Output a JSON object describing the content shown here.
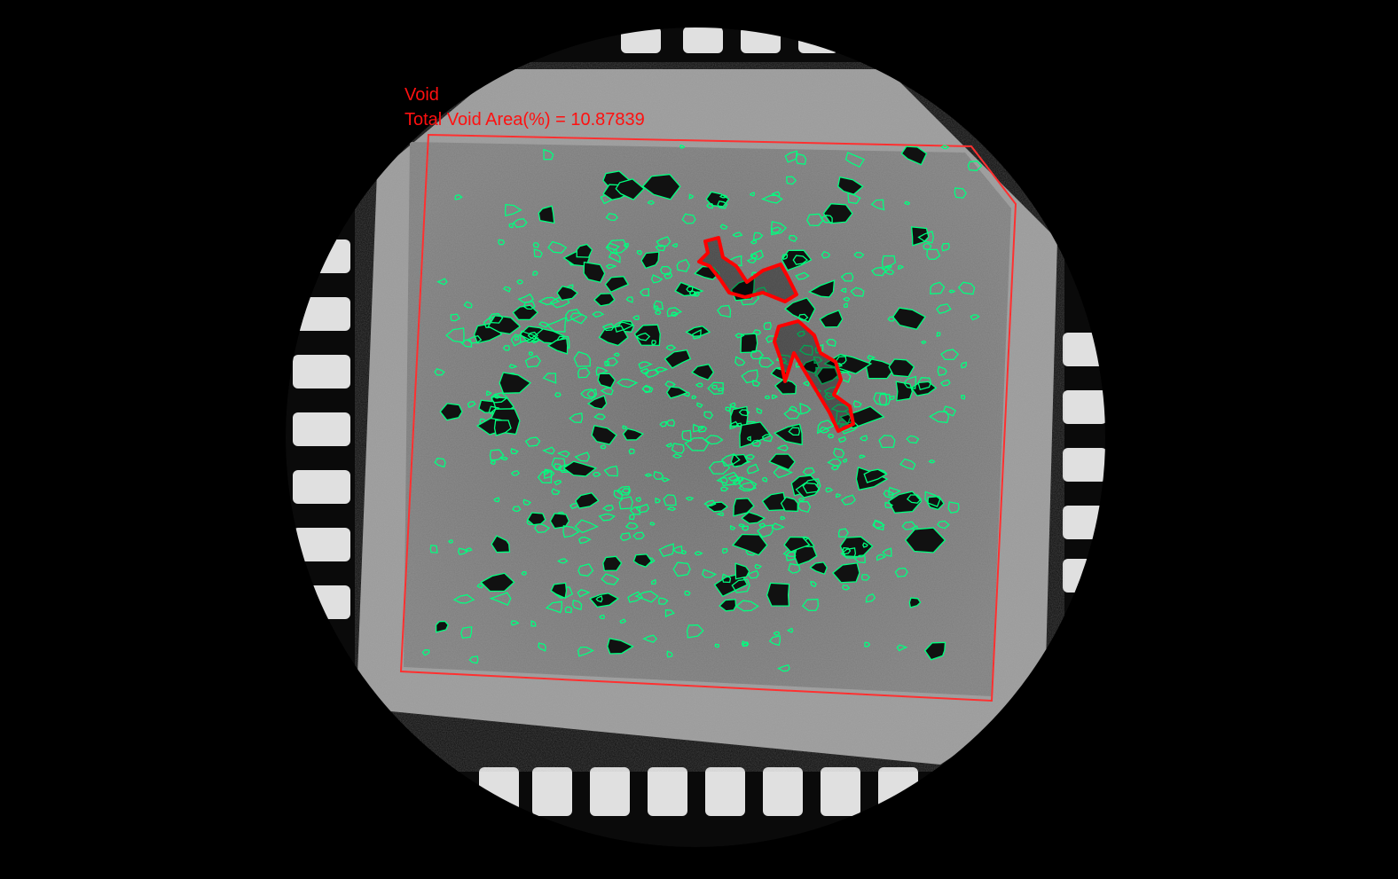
{
  "overlay": {
    "class_label": "Void",
    "summary_label": "Total Void Area(%) = 10.87839"
  },
  "colors": {
    "background": "#000000",
    "roi_outline": "#ff3030",
    "void_outline": "#00ff7f",
    "largest_void_outline": "#ff0000",
    "label_text": "#ff1010"
  },
  "measurement": {
    "total_void_area_percent": 10.87839
  }
}
